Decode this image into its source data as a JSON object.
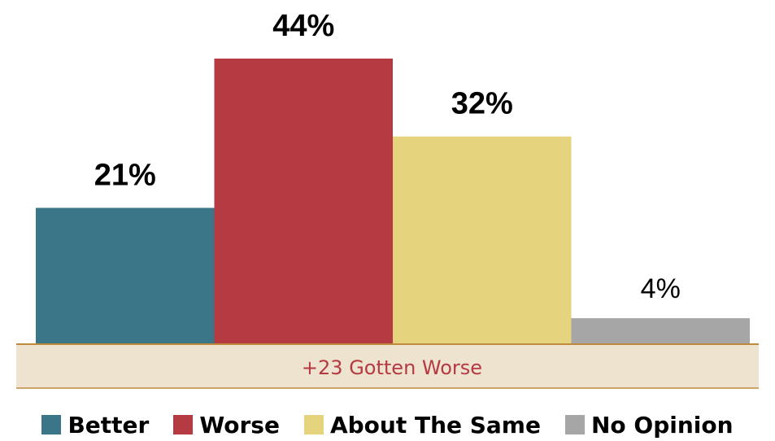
{
  "chart_data": {
    "type": "bar",
    "categories": [
      "Better",
      "Worse",
      "About The Same",
      "No Opinion"
    ],
    "values": [
      21,
      44,
      32,
      4
    ],
    "data_labels": [
      "21%",
      "44%",
      "32%",
      "4%"
    ],
    "colors": [
      "#3a7688",
      "#b53a41",
      "#e5d37d",
      "#a6a6a6"
    ],
    "ylim": [
      0,
      44
    ],
    "grid": false,
    "legend_position": "bottom",
    "title": "",
    "xlabel": "",
    "ylabel": ""
  },
  "callout": {
    "text": "+23 Gotten Worse",
    "text_color": "#b53a41",
    "background": "#ede3cf",
    "border_color": "#c08a3e"
  }
}
